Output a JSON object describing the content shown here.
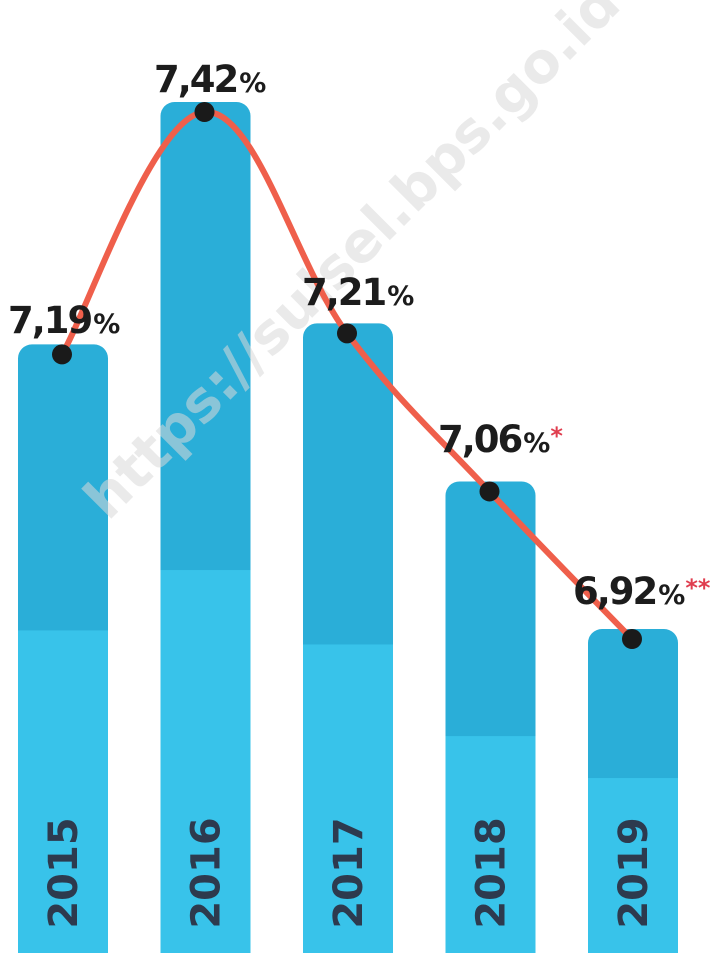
{
  "chart_data": {
    "type": "bar",
    "categories": [
      "2015",
      "2016",
      "2017",
      "2018",
      "2019"
    ],
    "values": [
      7.19,
      7.42,
      7.21,
      7.06,
      6.92
    ],
    "labels": [
      "7,19",
      "7,42",
      "7,21",
      "7,06",
      "6,92"
    ],
    "unit": "%",
    "notes": [
      "",
      "",
      "",
      "*",
      "**"
    ],
    "inner_split_fraction": [
      0.47,
      0.55,
      0.51,
      0.54,
      0.46
    ],
    "colors": {
      "bar_top": "#2aaed8",
      "bar_bottom": "#38c3ea",
      "line": "#ef5f4b",
      "point": "#1a1a1a",
      "note": "#e03e4f"
    },
    "overlay": "line through bar tops",
    "watermark": "https://sulsel.bps.go.id"
  }
}
